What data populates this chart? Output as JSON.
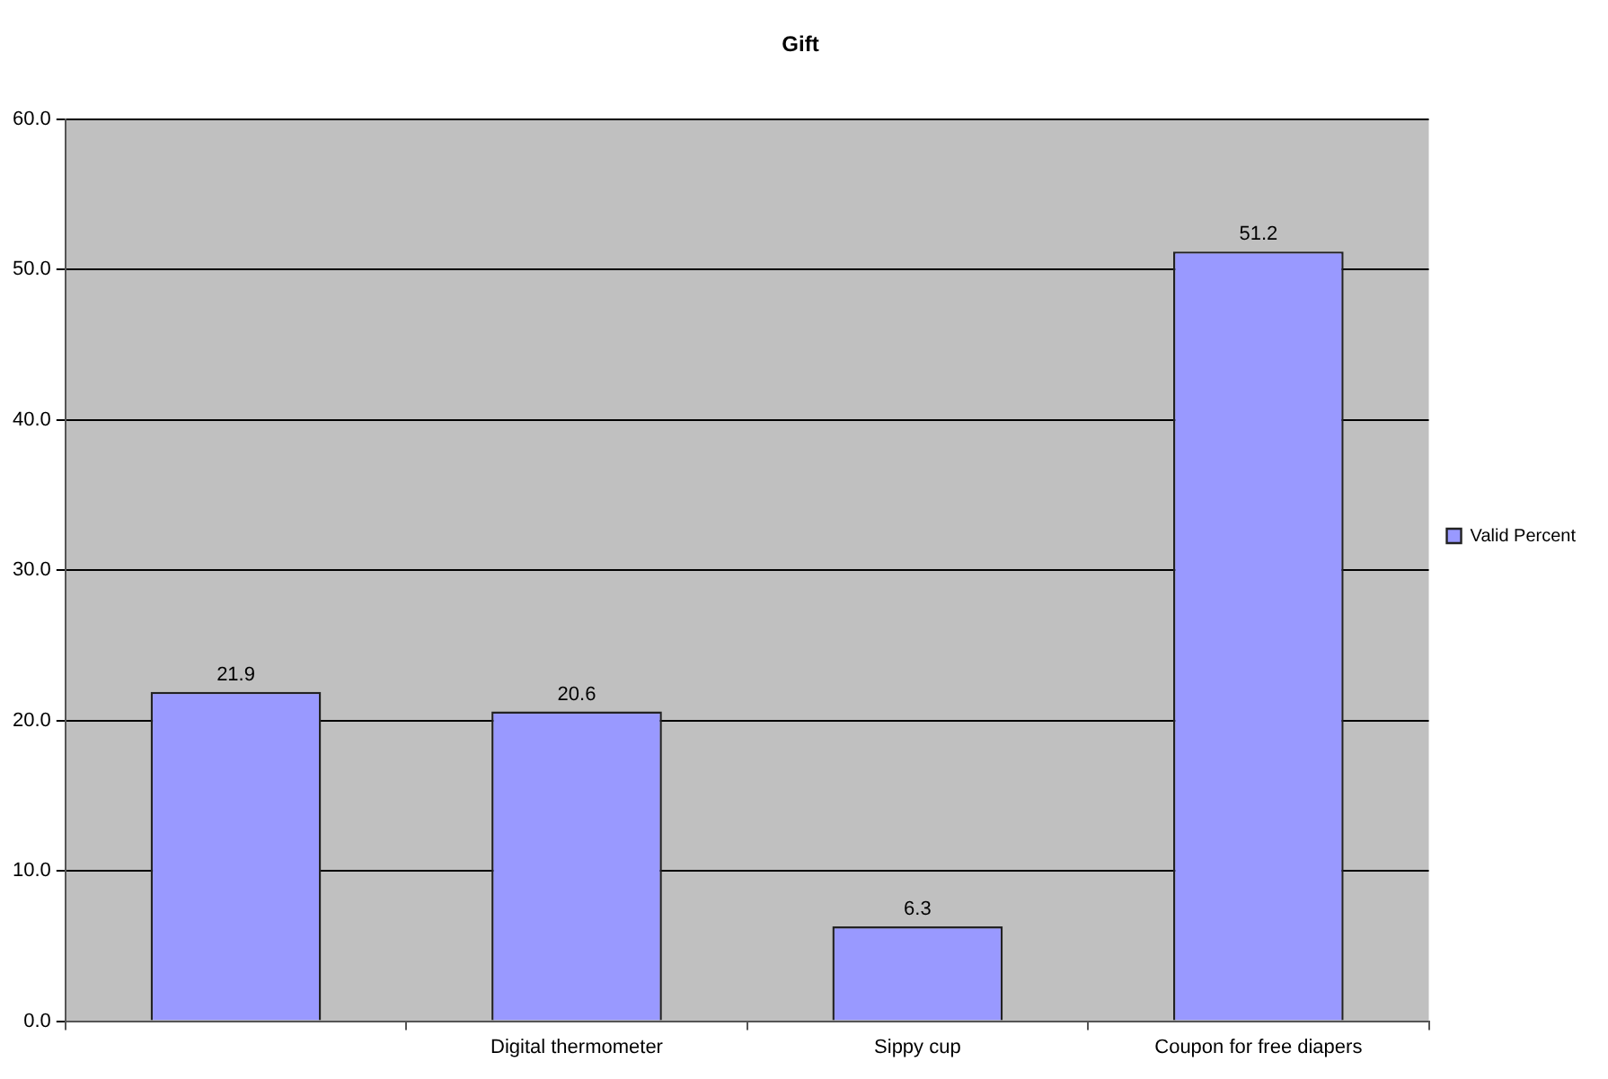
{
  "chart_data": {
    "type": "bar",
    "title": "Gift",
    "categories": [
      null,
      "Digital thermometer",
      "Sippy cup",
      "Coupon for free diapers"
    ],
    "series": [
      {
        "name": "Valid Percent",
        "color": "#9999ff",
        "values": [
          21.9,
          20.6,
          6.3,
          51.2
        ]
      }
    ],
    "ylim": [
      0,
      60
    ],
    "yticks": [
      {
        "value": 0,
        "label": "0.0"
      },
      {
        "value": 10,
        "label": "10.0"
      },
      {
        "value": 20,
        "label": "20.0"
      },
      {
        "value": 30,
        "label": "30.0"
      },
      {
        "value": 40,
        "label": "40.0"
      },
      {
        "value": 50,
        "label": "50.0"
      },
      {
        "value": 60,
        "label": "60.0"
      }
    ],
    "grid": "y",
    "legend": "right",
    "data_labels": true
  }
}
